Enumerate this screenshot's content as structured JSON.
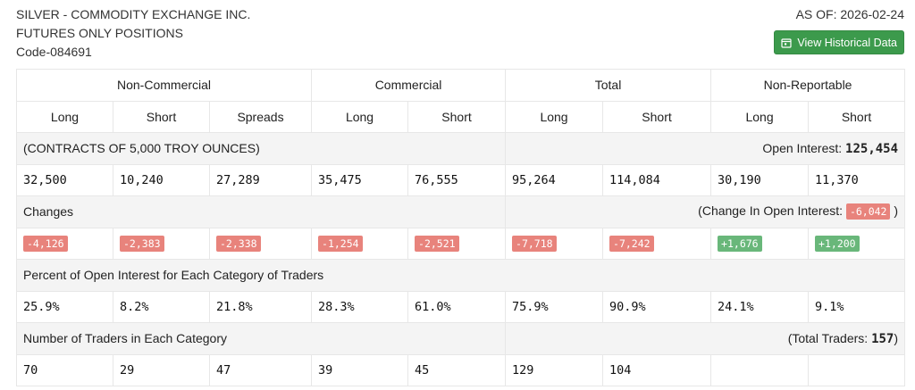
{
  "header": {
    "line1": "SILVER - COMMODITY EXCHANGE INC.",
    "line2": "FUTURES ONLY POSITIONS",
    "line3": "Code-084691",
    "as_of": "AS OF: 2026-02-24",
    "button": "View Historical Data",
    "button_icon": "calendar-icon"
  },
  "groups": [
    "Non-Commercial",
    "Commercial",
    "Total",
    "Non-Reportable"
  ],
  "columns": [
    "Long",
    "Short",
    "Spreads",
    "Long",
    "Short",
    "Long",
    "Short",
    "Long",
    "Short"
  ],
  "contracts": {
    "label": "(CONTRACTS OF 5,000 TROY OUNCES)",
    "oi_label": "Open Interest: ",
    "oi_value": "125,454",
    "values": [
      "32,500",
      "10,240",
      "27,289",
      "35,475",
      "76,555",
      "95,264",
      "114,084",
      "30,190",
      "11,370"
    ]
  },
  "changes": {
    "label": "Changes",
    "oi_prefix": "(Change In Open Interest: ",
    "oi_value": "-6,042",
    "oi_suffix": " )",
    "values": [
      "-4,126",
      "-2,383",
      "-2,338",
      "-1,254",
      "-2,521",
      "-7,718",
      "-7,242",
      "+1,676",
      "+1,200"
    ]
  },
  "percent": {
    "label": "Percent of Open Interest for Each Category of Traders",
    "values": [
      "25.9%",
      "8.2%",
      "21.8%",
      "28.3%",
      "61.0%",
      "75.9%",
      "90.9%",
      "24.1%",
      "9.1%"
    ]
  },
  "traders": {
    "label": "Number of Traders in Each Category",
    "total_prefix": "(Total Traders: ",
    "total_value": "157",
    "total_suffix": ")",
    "values": [
      "70",
      "29",
      "47",
      "39",
      "45",
      "129",
      "104",
      "",
      ""
    ]
  },
  "colors": {
    "negative": "#e8837c",
    "positive": "#69b77a",
    "button": "#3c9a4c"
  }
}
